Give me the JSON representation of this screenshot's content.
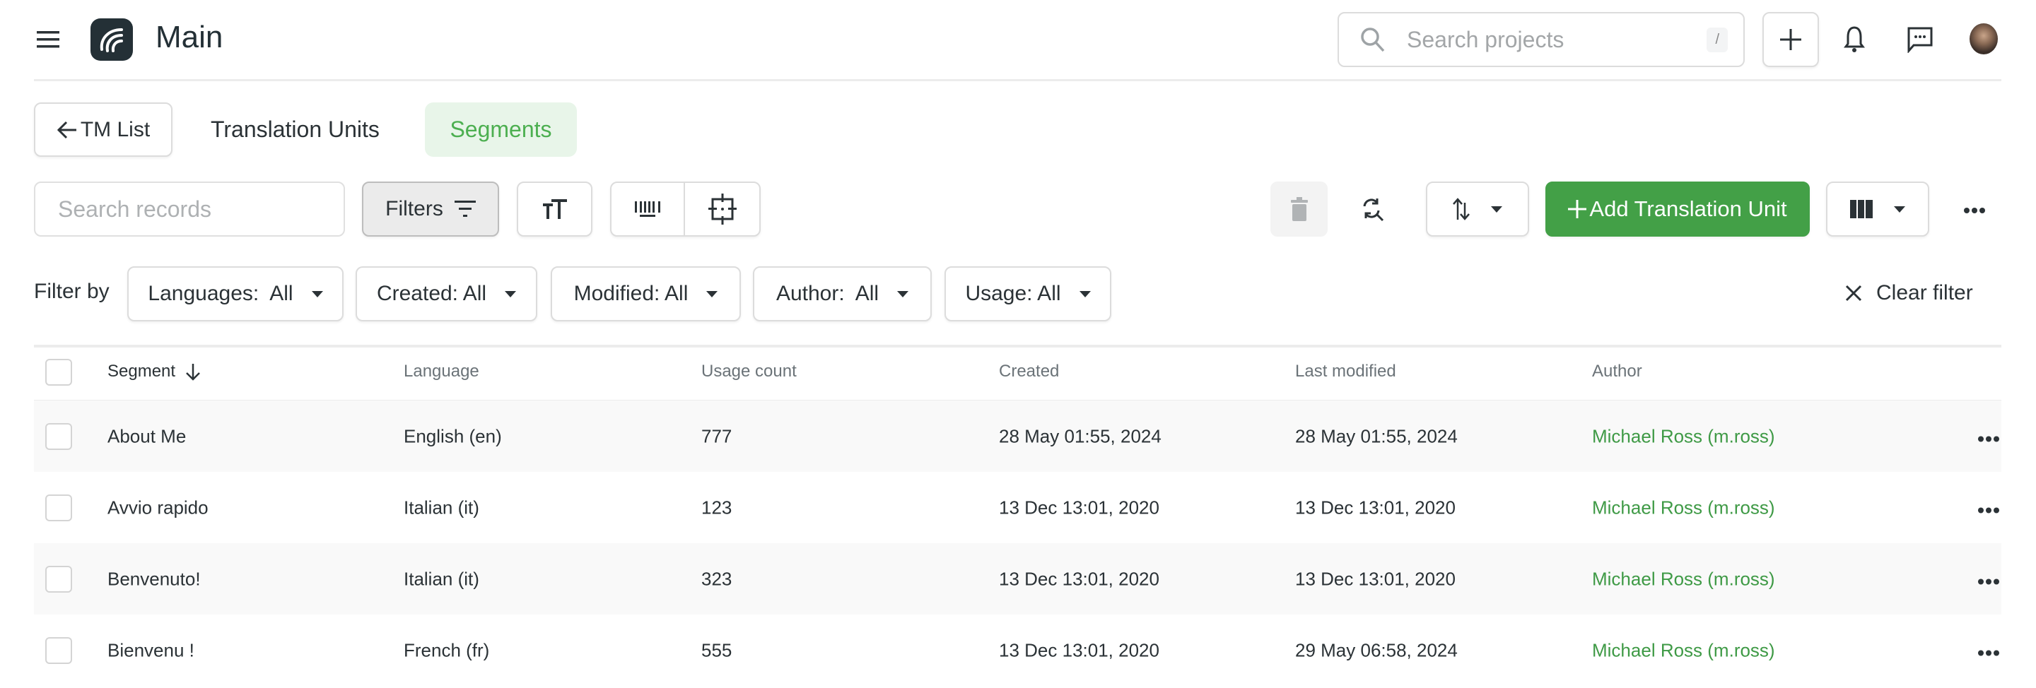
{
  "header": {
    "title": "Main",
    "search_placeholder": "Search projects",
    "search_shortcut": "/",
    "icons": [
      "menu-icon",
      "logo",
      "search-icon",
      "plus-icon",
      "bell-icon",
      "chat-icon",
      "avatar"
    ]
  },
  "tabs": {
    "back_label": "TM List",
    "items": [
      {
        "label": "Translation Units",
        "active": false
      },
      {
        "label": "Segments",
        "active": true
      }
    ]
  },
  "toolbar": {
    "search_placeholder": "Search records",
    "filters_label": "Filters",
    "add_label": "Add Translation Unit",
    "accent": "#43a047"
  },
  "filters": {
    "label": "Filter by",
    "items": [
      {
        "label": "Languages:  All"
      },
      {
        "label": "Created: All"
      },
      {
        "label": "Modified: All"
      },
      {
        "label": "Author:  All"
      },
      {
        "label": "Usage: All"
      }
    ],
    "clear_label": "Clear filter"
  },
  "table": {
    "columns": [
      "Segment",
      "Language",
      "Usage count",
      "Created",
      "Last modified",
      "Author"
    ],
    "sort_column": "Segment",
    "sort_direction": "descending",
    "rows": [
      {
        "segment": "About Me",
        "language": "English (en)",
        "usage": "777",
        "created": "28 May 01:55, 2024",
        "modified": "28 May 01:55, 2024",
        "author": "Michael Ross (m.ross)"
      },
      {
        "segment": "Avvio rapido",
        "language": "Italian (it)",
        "usage": "123",
        "created": "13 Dec 13:01, 2020",
        "modified": "13 Dec 13:01, 2020",
        "author": "Michael Ross (m.ross)"
      },
      {
        "segment": "Benvenuto!",
        "language": "Italian (it)",
        "usage": "323",
        "created": "13 Dec 13:01, 2020",
        "modified": "13 Dec 13:01, 2020",
        "author": "Michael Ross (m.ross)"
      },
      {
        "segment": "Bienvenu !",
        "language": "French (fr)",
        "usage": "555",
        "created": "13 Dec 13:01, 2020",
        "modified": "29 May 06:58, 2024",
        "author": "Michael Ross (m.ross)"
      }
    ],
    "author_color": "#3f9a46"
  }
}
